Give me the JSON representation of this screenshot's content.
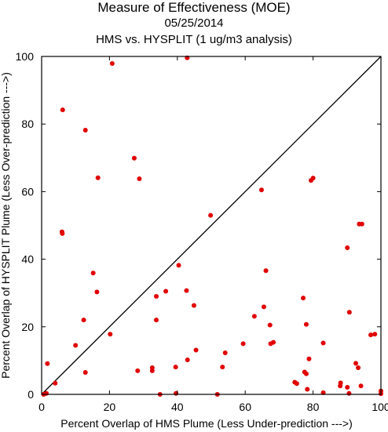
{
  "chart_data": {
    "type": "scatter",
    "title": "Measure of Effectiveness (MOE)",
    "subtitle": "05/25/2014",
    "subtitle2": "HMS vs. HYSPLIT  (1 ug/m3 analysis)",
    "xlabel": "Percent Overlap of HMS Plume (Less Under-prediction --->)",
    "ylabel": "Percent Overlap of HYSPLIT Plume (Less Over-prediction --->)",
    "xlim": [
      0,
      100
    ],
    "ylim": [
      0,
      100
    ],
    "xticks": [
      "0",
      "20",
      "40",
      "60",
      "80",
      "100"
    ],
    "yticks": [
      "0",
      "20",
      "40",
      "60",
      "80",
      "100"
    ],
    "reference_line": "diagonal y = x",
    "marker_color": "#e00000",
    "line_color": "#000000",
    "points": [
      [
        20.8,
        97.9
      ],
      [
        42.9,
        99.6
      ],
      [
        6.2,
        84.2
      ],
      [
        12.9,
        78.2
      ],
      [
        27.3,
        69.9
      ],
      [
        16.6,
        64.1
      ],
      [
        28.8,
        63.8
      ],
      [
        64.8,
        60.5
      ],
      [
        79.4,
        63.3
      ],
      [
        80.0,
        64.0
      ],
      [
        49.8,
        53.0
      ],
      [
        6.0,
        48.1
      ],
      [
        6.1,
        47.6
      ],
      [
        93.6,
        50.4
      ],
      [
        94.4,
        50.4
      ],
      [
        90.1,
        43.4
      ],
      [
        15.2,
        35.9
      ],
      [
        66.1,
        36.6
      ],
      [
        40.4,
        38.2
      ],
      [
        16.3,
        30.3
      ],
      [
        36.6,
        30.5
      ],
      [
        42.7,
        30.7
      ],
      [
        33.8,
        29.0
      ],
      [
        77.1,
        28.5
      ],
      [
        44.9,
        26.3
      ],
      [
        65.5,
        25.9
      ],
      [
        90.7,
        24.3
      ],
      [
        12.4,
        22.0
      ],
      [
        33.8,
        22.0
      ],
      [
        62.7,
        23.1
      ],
      [
        67.3,
        20.5
      ],
      [
        78.0,
        20.7
      ],
      [
        20.2,
        17.8
      ],
      [
        97.0,
        17.6
      ],
      [
        98.2,
        17.8
      ],
      [
        10.0,
        14.5
      ],
      [
        67.5,
        15.0
      ],
      [
        68.3,
        15.4
      ],
      [
        59.4,
        15.0
      ],
      [
        83.0,
        15.2
      ],
      [
        45.5,
        13.1
      ],
      [
        54.1,
        12.3
      ],
      [
        43.0,
        10.2
      ],
      [
        78.8,
        10.5
      ],
      [
        92.6,
        9.2
      ],
      [
        1.7,
        9.1
      ],
      [
        93.3,
        7.9
      ],
      [
        39.5,
        8.1
      ],
      [
        53.3,
        8.1
      ],
      [
        32.6,
        7.9
      ],
      [
        32.6,
        7.0
      ],
      [
        28.3,
        7.0
      ],
      [
        12.9,
        6.5
      ],
      [
        77.5,
        6.6
      ],
      [
        78.0,
        6.1
      ],
      [
        4.0,
        3.3
      ],
      [
        74.6,
        3.6
      ],
      [
        75.2,
        3.2
      ],
      [
        88.1,
        3.4
      ],
      [
        88.0,
        2.5
      ],
      [
        90.1,
        2.1
      ],
      [
        94.1,
        2.5
      ],
      [
        78.3,
        1.5
      ],
      [
        83.0,
        0.5
      ],
      [
        90.6,
        0.3
      ],
      [
        100.0,
        1.0
      ],
      [
        100.0,
        0.2
      ],
      [
        0.6,
        0.0
      ],
      [
        1.4,
        0.3
      ],
      [
        34.9,
        0.0
      ],
      [
        39.6,
        0.3
      ],
      [
        51.8,
        0.0
      ]
    ]
  }
}
